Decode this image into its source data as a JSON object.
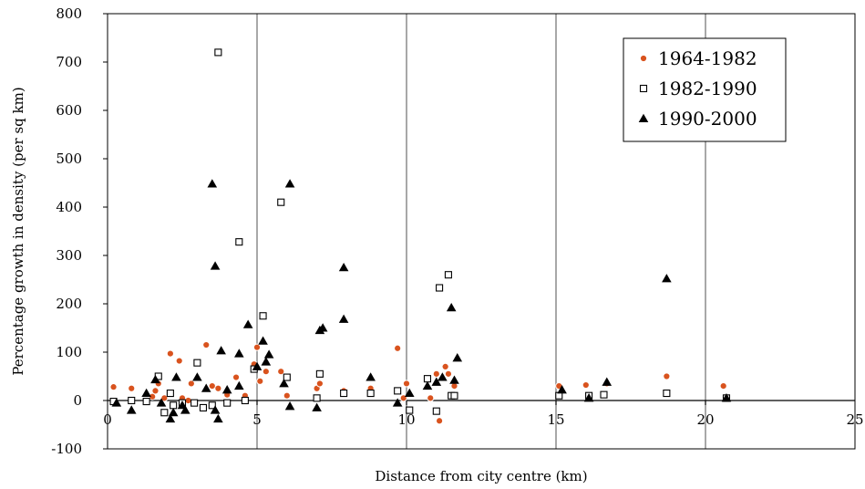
{
  "chart_data": {
    "type": "scatter",
    "xlabel": "Distance from city centre (km)",
    "ylabel": "Percentage growth in density (per sq km)",
    "xlim": [
      0,
      25
    ],
    "ylim": [
      -100,
      800
    ],
    "x_ticks": [
      "0",
      "5",
      "10",
      "15",
      "20",
      "25"
    ],
    "y_ticks": [
      "-100",
      "0",
      "100",
      "200",
      "300",
      "400",
      "500",
      "600",
      "700",
      "800"
    ],
    "grid": "vertical",
    "legend_position": "top-right",
    "series": [
      {
        "name": "1964-1982",
        "marker": "circle",
        "color": "#d9531e",
        "points": [
          [
            0.2,
            28
          ],
          [
            0.8,
            25
          ],
          [
            1.5,
            8
          ],
          [
            1.6,
            20
          ],
          [
            1.7,
            35
          ],
          [
            1.9,
            5
          ],
          [
            2.1,
            97
          ],
          [
            2.4,
            82
          ],
          [
            2.5,
            5
          ],
          [
            2.7,
            0
          ],
          [
            2.8,
            35
          ],
          [
            3.3,
            115
          ],
          [
            3.5,
            30
          ],
          [
            3.7,
            25
          ],
          [
            4.0,
            12
          ],
          [
            4.3,
            48
          ],
          [
            4.6,
            10
          ],
          [
            4.9,
            75
          ],
          [
            5.0,
            110
          ],
          [
            5.1,
            40
          ],
          [
            5.3,
            60
          ],
          [
            5.8,
            60
          ],
          [
            6.0,
            10
          ],
          [
            7.0,
            25
          ],
          [
            7.1,
            35
          ],
          [
            7.9,
            20
          ],
          [
            8.8,
            25
          ],
          [
            9.7,
            108
          ],
          [
            9.9,
            5
          ],
          [
            10.0,
            35
          ],
          [
            10.8,
            5
          ],
          [
            11.0,
            55
          ],
          [
            11.1,
            -42
          ],
          [
            11.3,
            70
          ],
          [
            11.4,
            55
          ],
          [
            11.6,
            30
          ],
          [
            15.1,
            30
          ],
          [
            16.0,
            32
          ],
          [
            16.7,
            35
          ],
          [
            18.7,
            50
          ],
          [
            20.6,
            30
          ]
        ]
      },
      {
        "name": "1982-1990",
        "marker": "square",
        "color": "#000000",
        "points": [
          [
            0.2,
            -2
          ],
          [
            0.8,
            0
          ],
          [
            1.3,
            -2
          ],
          [
            1.7,
            50
          ],
          [
            1.9,
            -25
          ],
          [
            2.1,
            15
          ],
          [
            2.2,
            -10
          ],
          [
            2.5,
            -5
          ],
          [
            2.9,
            -5
          ],
          [
            3.0,
            78
          ],
          [
            3.2,
            -15
          ],
          [
            3.5,
            -10
          ],
          [
            3.7,
            720
          ],
          [
            4.0,
            -5
          ],
          [
            4.4,
            328
          ],
          [
            4.6,
            0
          ],
          [
            4.9,
            65
          ],
          [
            5.2,
            175
          ],
          [
            5.8,
            410
          ],
          [
            6.0,
            48
          ],
          [
            7.0,
            5
          ],
          [
            7.1,
            55
          ],
          [
            7.9,
            15
          ],
          [
            8.8,
            15
          ],
          [
            9.7,
            20
          ],
          [
            10.1,
            -20
          ],
          [
            10.7,
            45
          ],
          [
            11.0,
            -22
          ],
          [
            11.1,
            233
          ],
          [
            11.4,
            260
          ],
          [
            11.5,
            10
          ],
          [
            11.6,
            10
          ],
          [
            15.1,
            10
          ],
          [
            16.1,
            10
          ],
          [
            16.6,
            12
          ],
          [
            18.7,
            15
          ],
          [
            20.7,
            5
          ]
        ]
      },
      {
        "name": "1990-2000",
        "marker": "triangle",
        "color": "#000000",
        "points": [
          [
            0.3,
            -5
          ],
          [
            0.8,
            -20
          ],
          [
            1.3,
            15
          ],
          [
            1.6,
            43
          ],
          [
            1.8,
            -5
          ],
          [
            2.1,
            -38
          ],
          [
            2.2,
            -25
          ],
          [
            2.3,
            48
          ],
          [
            2.5,
            -10
          ],
          [
            2.6,
            -20
          ],
          [
            3.0,
            48
          ],
          [
            3.3,
            25
          ],
          [
            3.5,
            448
          ],
          [
            3.6,
            278
          ],
          [
            3.6,
            -20
          ],
          [
            3.7,
            -38
          ],
          [
            3.8,
            103
          ],
          [
            4.0,
            22
          ],
          [
            4.4,
            97
          ],
          [
            4.4,
            30
          ],
          [
            4.7,
            157
          ],
          [
            5.0,
            70
          ],
          [
            5.2,
            123
          ],
          [
            5.3,
            80
          ],
          [
            5.4,
            95
          ],
          [
            5.9,
            35
          ],
          [
            6.1,
            448
          ],
          [
            6.1,
            -12
          ],
          [
            7.0,
            -15
          ],
          [
            7.1,
            145
          ],
          [
            7.2,
            150
          ],
          [
            7.9,
            275
          ],
          [
            7.9,
            168
          ],
          [
            8.8,
            48
          ],
          [
            9.7,
            -5
          ],
          [
            10.1,
            15
          ],
          [
            10.7,
            30
          ],
          [
            11.0,
            38
          ],
          [
            11.2,
            48
          ],
          [
            11.5,
            192
          ],
          [
            11.6,
            42
          ],
          [
            11.7,
            88
          ],
          [
            15.2,
            22
          ],
          [
            16.1,
            5
          ],
          [
            16.7,
            38
          ],
          [
            18.7,
            252
          ],
          [
            20.7,
            5
          ]
        ]
      }
    ]
  }
}
